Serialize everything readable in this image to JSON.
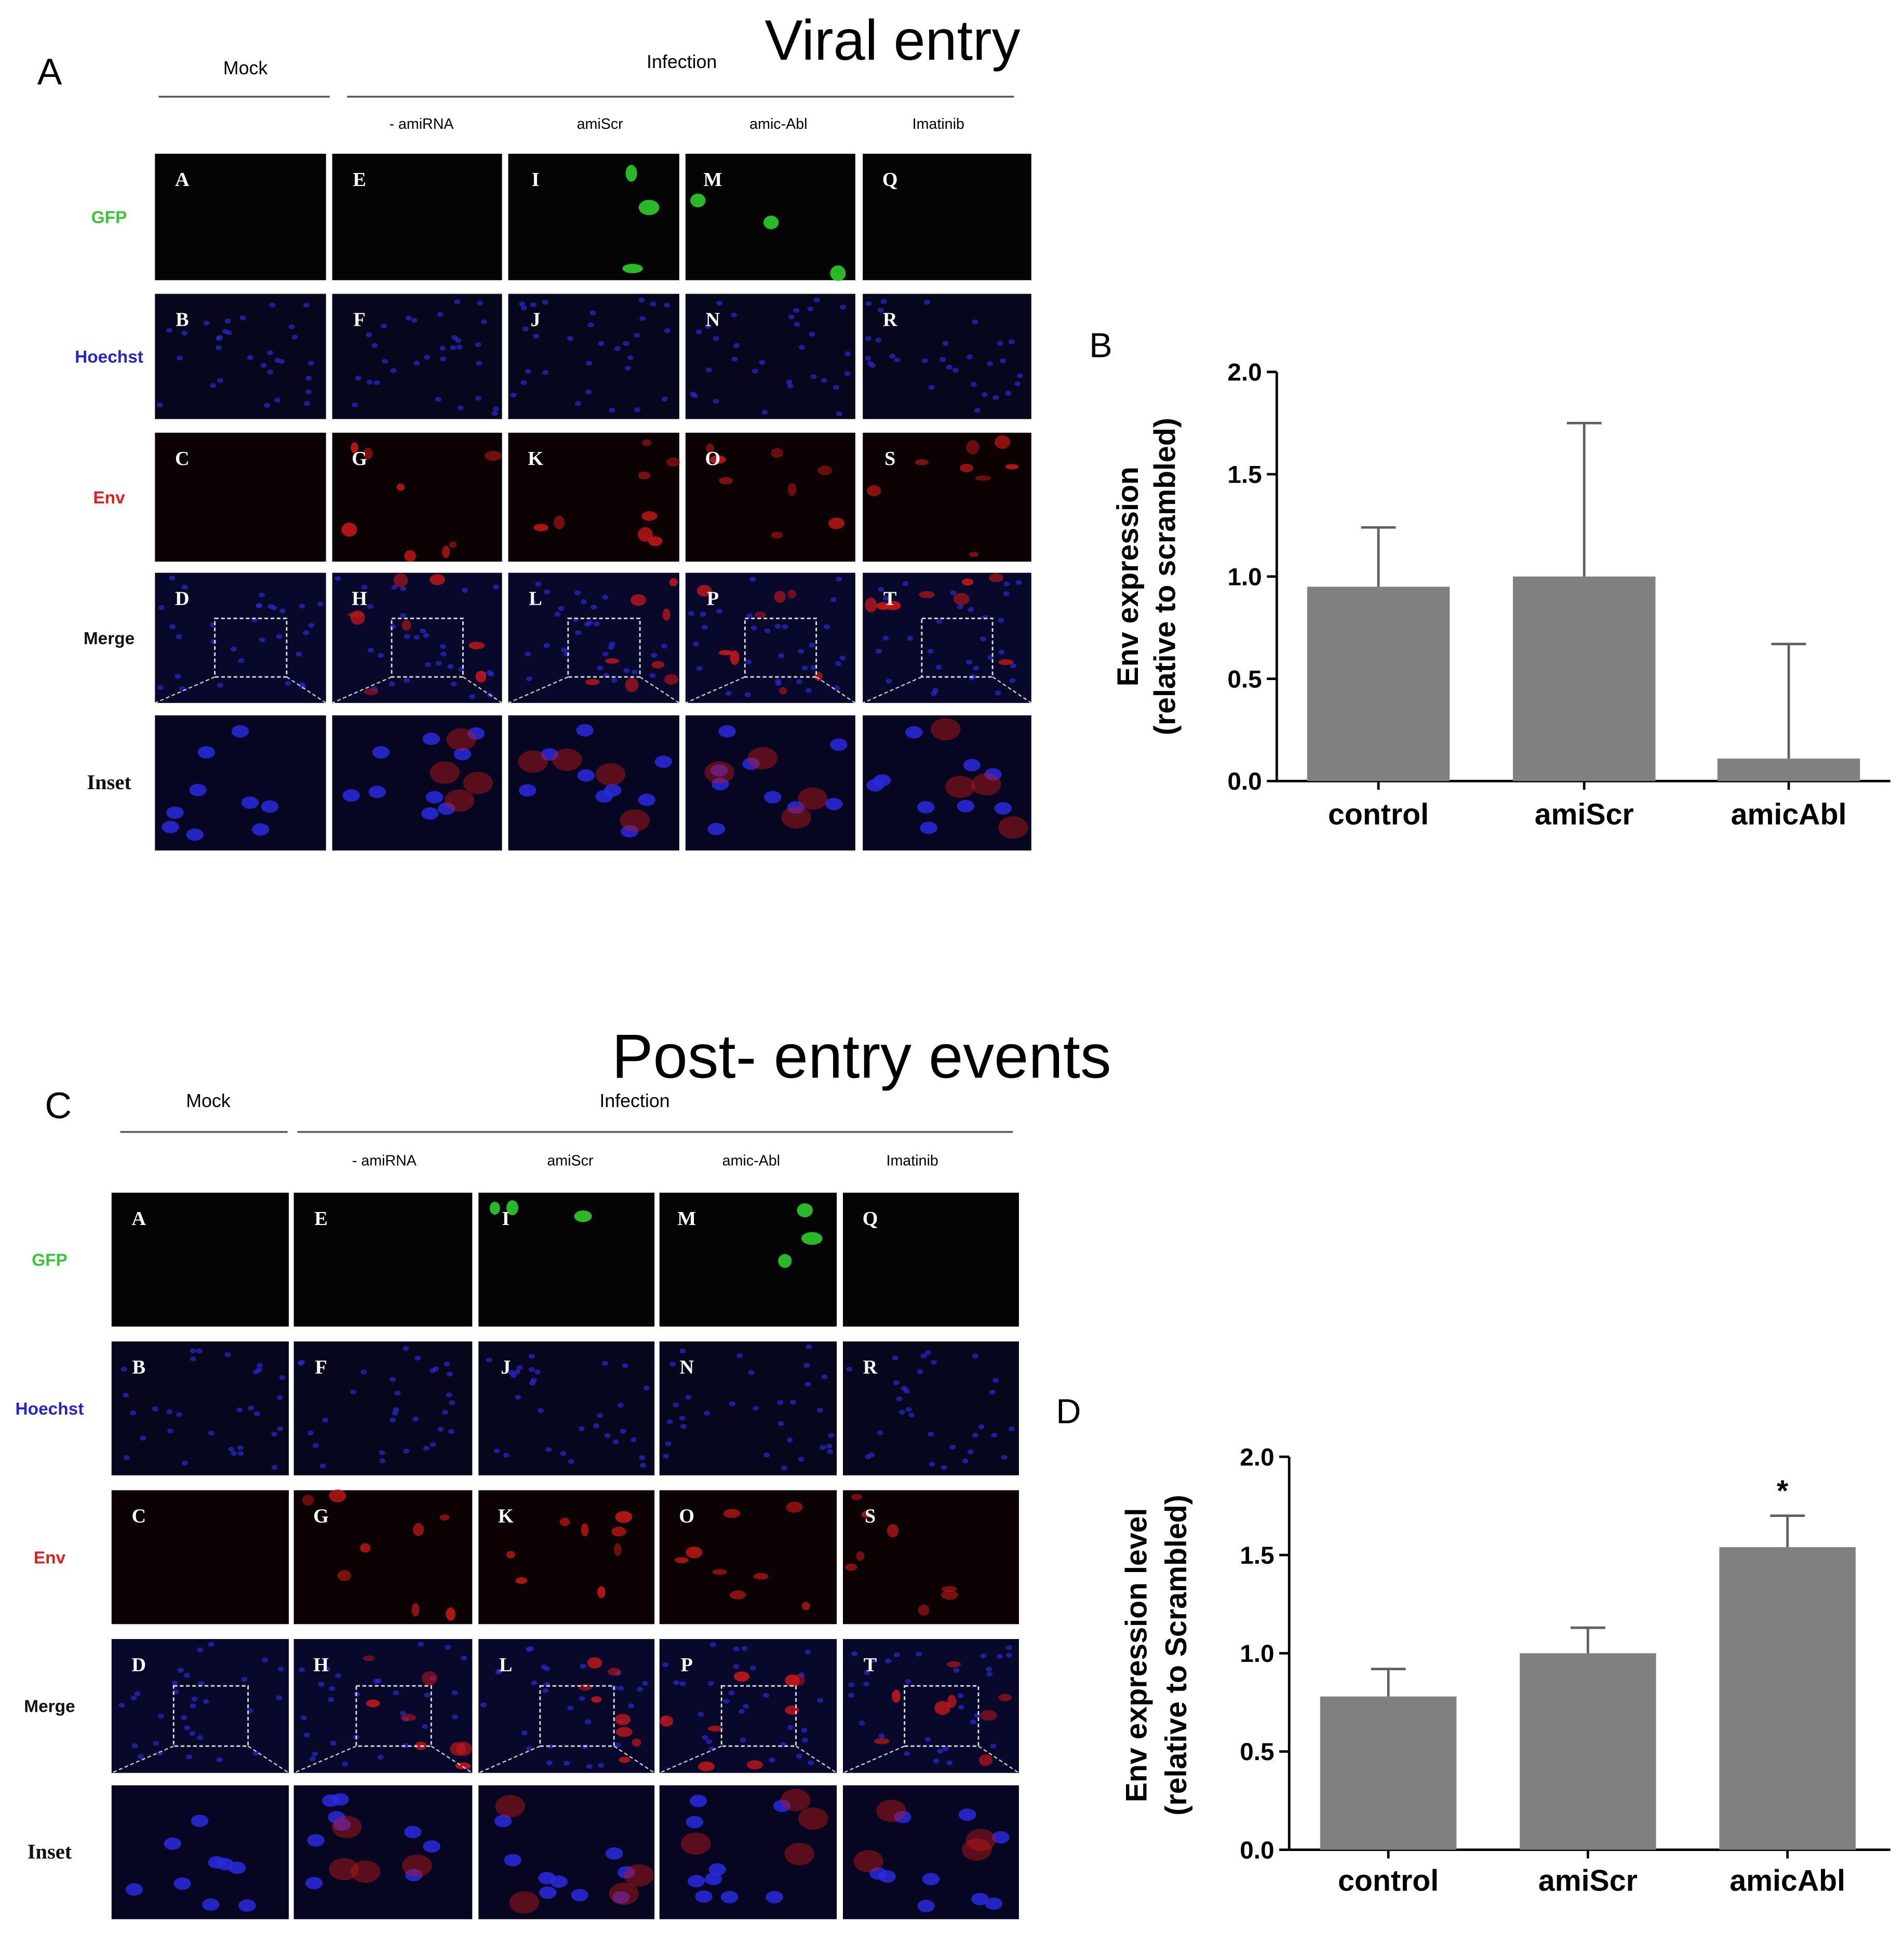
{
  "figure": {
    "panel_a": {
      "label": "A",
      "title": "Viral entry",
      "group_headers": [
        "Mock",
        "Infection"
      ],
      "column_headers": [
        "- amiRNA",
        "amiScr",
        "amic-Abl",
        "Imatinib"
      ],
      "row_labels": [
        "GFP",
        "Hoechst",
        "Env",
        "Merge",
        "Inset"
      ],
      "cell_letters": [
        [
          "A",
          "B",
          "C",
          "D"
        ],
        [
          "E",
          "F",
          "G",
          "H"
        ],
        [
          "I",
          "J",
          "K",
          "L"
        ],
        [
          "M",
          "N",
          "O",
          "P"
        ],
        [
          "Q",
          "R",
          "S",
          "T"
        ]
      ]
    },
    "panel_c": {
      "label": "C",
      "title": "Post- entry events",
      "group_headers": [
        "Mock",
        "Infection"
      ],
      "column_headers": [
        "- amiRNA",
        "amiScr",
        "amic-Abl",
        "Imatinib"
      ],
      "row_labels": [
        "GFP",
        "Hoechst",
        "Env",
        "Merge",
        "Inset"
      ],
      "cell_letters": [
        [
          "A",
          "B",
          "C",
          "D"
        ],
        [
          "E",
          "F",
          "G",
          "H"
        ],
        [
          "I",
          "J",
          "K",
          "L"
        ],
        [
          "M",
          "N",
          "O",
          "P"
        ],
        [
          "Q",
          "R",
          "S",
          "T"
        ]
      ]
    }
  },
  "chart_data": [
    {
      "type": "bar",
      "panel_label": "B",
      "y_label": [
        "Env expression",
        "(relative to scrambled)"
      ],
      "categories": [
        "control",
        "amiScr",
        "amicAbl"
      ],
      "values": [
        0.95,
        1.0,
        0.11
      ],
      "errors": [
        0.29,
        0.75,
        0.56
      ],
      "color": "#808080",
      "ylim": [
        0,
        2
      ],
      "yticks": [
        {
          "value": 0,
          "label": "0.0"
        },
        0.5,
        {
          "value": 1,
          "label": "1.0"
        },
        1.5,
        {
          "value": 2,
          "label": "2.0"
        }
      ]
    },
    {
      "type": "bar",
      "panel_label": "D",
      "y_label": [
        "Env expression level",
        "(relative to Scrambled)"
      ],
      "categories": [
        "control",
        "amiScr",
        "amicAbl"
      ],
      "values": [
        0.78,
        1.0,
        1.54
      ],
      "errors": [
        0.14,
        0.13,
        0.16
      ],
      "color": "#808080",
      "ylim": [
        0,
        2
      ],
      "annotation": "*",
      "yticks": [
        {
          "value": 0,
          "label": "0.0"
        },
        0.5,
        {
          "value": 1,
          "label": "1.0"
        },
        1.5,
        {
          "value": 2,
          "label": "2.0"
        }
      ]
    }
  ]
}
